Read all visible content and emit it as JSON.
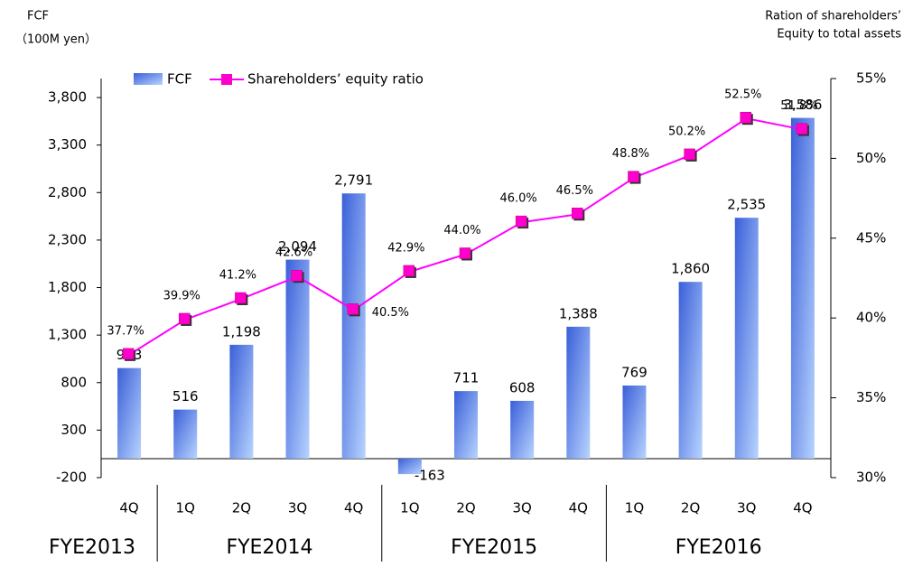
{
  "chart_data": {
    "type": "bar-line",
    "y_label": [
      "FCF",
      "（100M yen）"
    ],
    "y2_label": [
      "Ration of shareholders’",
      "Equity to total assets"
    ],
    "categories": [
      "4Q",
      "1Q",
      "2Q",
      "3Q",
      "4Q",
      "1Q",
      "2Q",
      "3Q",
      "4Q",
      "1Q",
      "2Q",
      "3Q",
      "4Q"
    ],
    "groups": [
      {
        "label": "FYE2013",
        "span": 1
      },
      {
        "label": "FYE2014",
        "span": 4
      },
      {
        "label": "FYE2015",
        "span": 4
      },
      {
        "label": "FYE2016",
        "span": 4
      }
    ],
    "series": [
      {
        "name": "FCF",
        "color": "#5a7fe8",
        "values": [
          953,
          516,
          1198,
          2094,
          2791,
          -163,
          711,
          608,
          1388,
          769,
          1860,
          2535,
          3586
        ],
        "value_labels": [
          "953",
          "516",
          "1,198",
          "2,094",
          "2,791",
          "-163",
          "711",
          "608",
          "1,388",
          "769",
          "1,860",
          "2,535",
          "3,586"
        ]
      },
      {
        "name": "Shareholders’ equity ratio",
        "color": "#ff00ff",
        "axis": "y2",
        "values": [
          37.7,
          39.9,
          41.2,
          42.6,
          40.5,
          42.9,
          44.0,
          46.0,
          46.5,
          48.8,
          50.2,
          52.5,
          51.8
        ],
        "value_labels": [
          "37.7%",
          "39.9%",
          "41.2%",
          "42.6%",
          "40.5%",
          "42.9%",
          "44.0%",
          "46.0%",
          "46.5%",
          "48.8%",
          "50.2%",
          "52.5%",
          "51.8%"
        ]
      }
    ],
    "ylim": [
      -200,
      4000
    ],
    "yticks": [
      -200,
      300,
      800,
      {
        "value": 1300,
        "label": "1,300"
      },
      {
        "value": 1800,
        "label": "1,800"
      },
      {
        "value": 2300,
        "label": "2,300"
      },
      {
        "value": 2800,
        "label": "2,800"
      },
      {
        "value": 3300,
        "label": "3,300"
      },
      {
        "value": 3800,
        "label": "3,800"
      }
    ],
    "y2lim": [
      30,
      55
    ],
    "y2ticks": [
      {
        "value": 30,
        "label": "30%"
      },
      {
        "value": 35,
        "label": "35%"
      },
      {
        "value": 40,
        "label": "40%"
      },
      {
        "value": 45,
        "label": "45%"
      },
      {
        "value": 50,
        "label": "50%"
      },
      {
        "value": 55,
        "label": "55%"
      }
    ]
  }
}
